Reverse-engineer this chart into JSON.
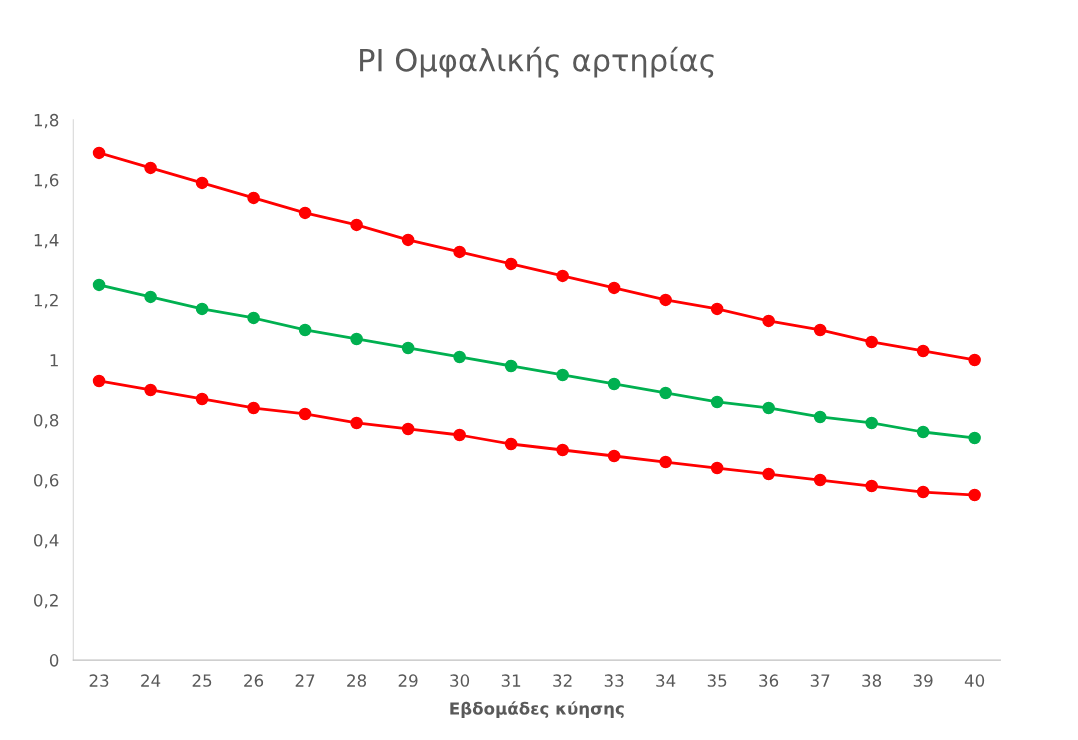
{
  "chart_data": {
    "type": "line",
    "title": "PI Ομφαλικής αρτηρίας",
    "xlabel": "Εβδομάδες κύησης",
    "categories": [
      "23",
      "24",
      "25",
      "26",
      "27",
      "28",
      "29",
      "30",
      "31",
      "32",
      "33",
      "34",
      "35",
      "36",
      "37",
      "38",
      "39",
      "40"
    ],
    "series": [
      {
        "color": "#ff0000",
        "values": [
          1.69,
          1.64,
          1.59,
          1.54,
          1.49,
          1.45,
          1.4,
          1.36,
          1.32,
          1.28,
          1.24,
          1.2,
          1.17,
          1.13,
          1.1,
          1.06,
          1.03,
          1.0
        ]
      },
      {
        "color": "#00b050",
        "values": [
          1.25,
          1.21,
          1.17,
          1.14,
          1.1,
          1.07,
          1.04,
          1.01,
          0.98,
          0.95,
          0.92,
          0.89,
          0.86,
          0.84,
          0.81,
          0.79,
          0.76,
          0.74
        ]
      },
      {
        "color": "#ff0000",
        "values": [
          0.93,
          0.9,
          0.87,
          0.84,
          0.82,
          0.79,
          0.77,
          0.75,
          0.72,
          0.7,
          0.68,
          0.66,
          0.64,
          0.62,
          0.6,
          0.58,
          0.56,
          0.55
        ]
      }
    ],
    "ylim": [
      0,
      1.8
    ],
    "yticks": [
      0,
      {
        "value": 0.2,
        "label": "0,2"
      },
      {
        "value": 0.4,
        "label": "0,4"
      },
      {
        "value": 0.6,
        "label": "0,6"
      },
      {
        "value": 0.8,
        "label": "0,8"
      },
      1,
      {
        "value": 1.2,
        "label": "1,2"
      },
      {
        "value": 1.4,
        "label": "1,4"
      },
      {
        "value": 1.6,
        "label": "1,6"
      },
      {
        "value": 1.8,
        "label": "1,8"
      }
    ],
    "grid": false,
    "legend": false,
    "marker": "circle",
    "line_style": "solid"
  }
}
